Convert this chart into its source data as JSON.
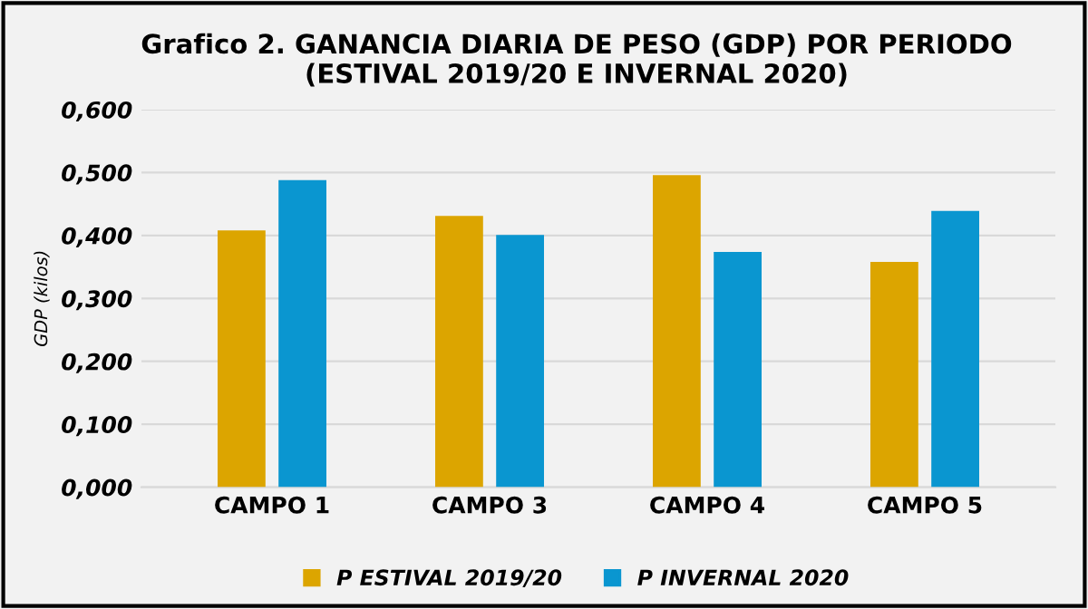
{
  "chart_data": {
    "type": "bar",
    "title": "Grafico 2. GANANCIA DIARIA DE PESO (GDP) POR PERIODO\n(ESTIVAL 2019/20 E INVERNAL 2020)",
    "ylabel": "GDP (kilos)",
    "categories": [
      "CAMPO 1",
      "CAMPO 3",
      "CAMPO 4",
      "CAMPO 5"
    ],
    "series": [
      {
        "name": "P ESTIVAL 2019/20",
        "color": "#dca500",
        "values": [
          0.408,
          0.431,
          0.496,
          0.358
        ]
      },
      {
        "name": "P INVERNAL 2020",
        "color": "#0a96d0",
        "values": [
          0.488,
          0.401,
          0.374,
          0.439
        ]
      }
    ],
    "ylim": [
      0,
      0.6
    ],
    "yticks": [
      {
        "value": 0,
        "label": "0,000"
      },
      {
        "value": 0.1,
        "label": "0,100"
      },
      {
        "value": 0.2,
        "label": "0,200"
      },
      {
        "value": 0.3,
        "label": "0,300"
      },
      {
        "value": 0.4,
        "label": "0,400"
      },
      {
        "value": 0.5,
        "label": "0,500"
      },
      {
        "value": 0.6,
        "label": "0,600"
      }
    ],
    "grid": "y",
    "legend": "bottom"
  }
}
